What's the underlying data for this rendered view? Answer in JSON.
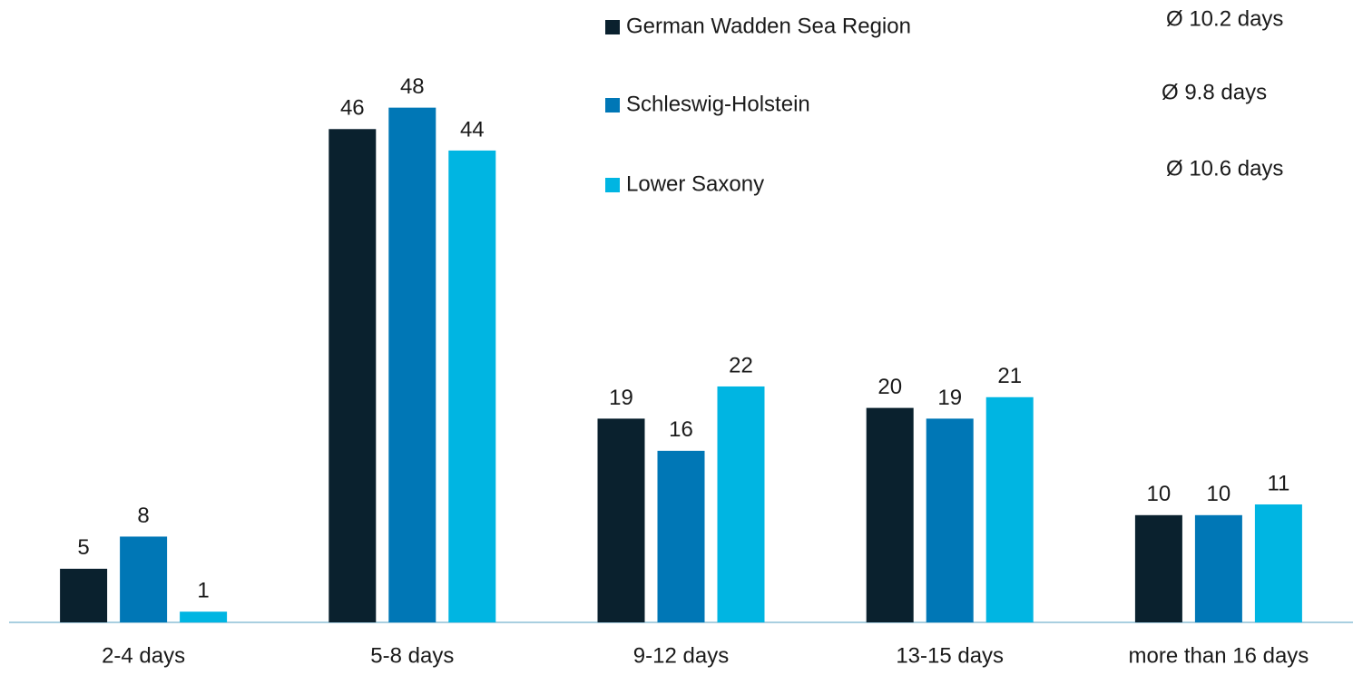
{
  "chart_data": {
    "type": "bar",
    "categories": [
      "2-4 days",
      "5-8 days",
      "9-12 days",
      "13-15 days",
      "more than 16 days"
    ],
    "series": [
      {
        "name": "German Wadden Sea  Region",
        "color": "#0a212e",
        "values": [
          5,
          46,
          19,
          20,
          10
        ]
      },
      {
        "name": "Schleswig-Holstein",
        "color": "#0077b6",
        "values": [
          8,
          48,
          16,
          19,
          10
        ]
      },
      {
        "name": "Lower Saxony",
        "color": "#00b5e2",
        "values": [
          1,
          44,
          22,
          21,
          11
        ]
      }
    ],
    "averages": [
      "Ø 10.2 days",
      "Ø 9.8 days",
      "Ø 10.6 days"
    ],
    "ylim": [
      0,
      50
    ]
  }
}
